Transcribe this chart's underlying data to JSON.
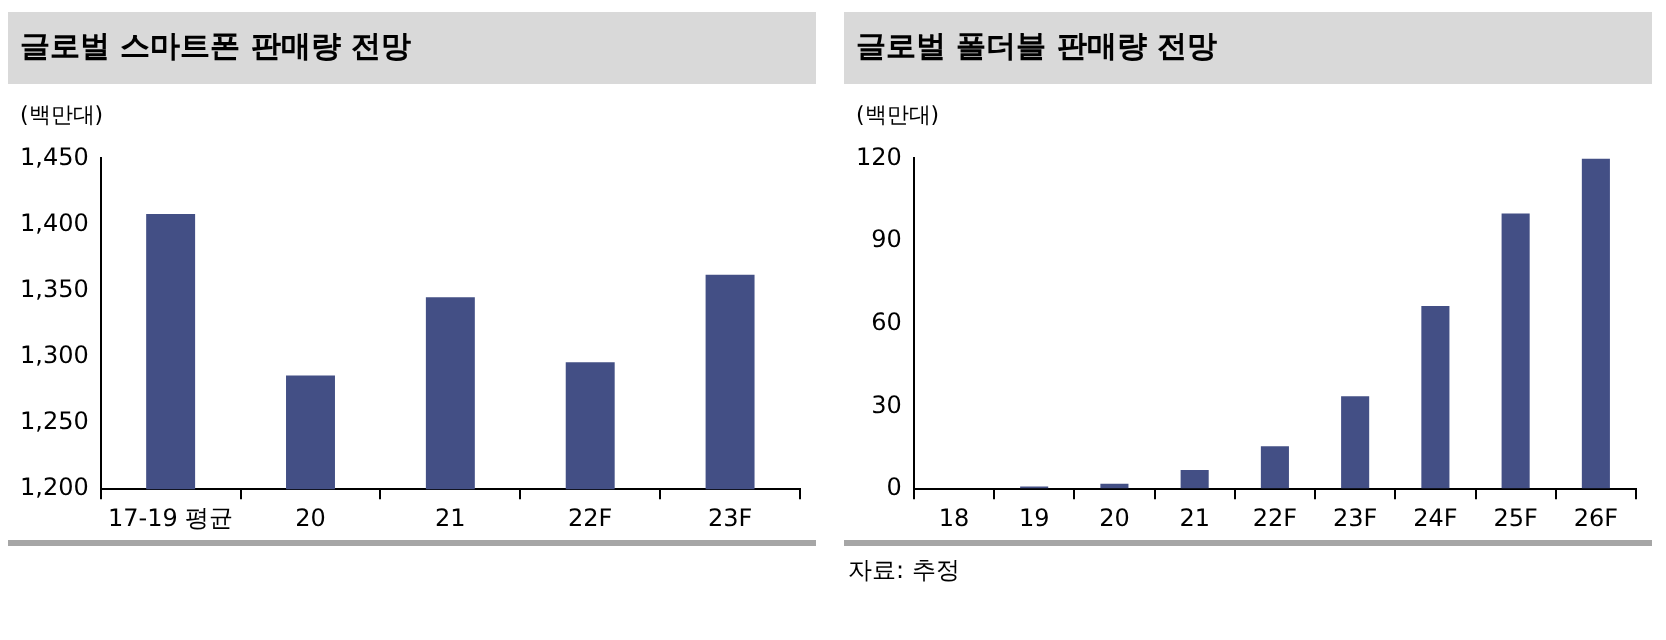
{
  "chart_data": [
    {
      "type": "bar",
      "title": "글로벌 스마트폰 판매량 전망",
      "ylabel": "(백만대)",
      "categories": [
        "17-19 평균",
        "20",
        "21",
        "22F",
        "23F"
      ],
      "values": [
        1408,
        1286,
        1345,
        1296,
        1362
      ],
      "color": "#434f85",
      "ylim": [
        1200,
        1450
      ],
      "yticks": [
        {
          "value": 1200,
          "label": "1,200"
        },
        {
          "value": 1250,
          "label": "1,250"
        },
        {
          "value": 1300,
          "label": "1,300"
        },
        {
          "value": 1350,
          "label": "1,350"
        },
        {
          "value": 1400,
          "label": "1,400"
        },
        {
          "value": 1450,
          "label": "1,450"
        }
      ],
      "grid": false
    },
    {
      "type": "bar",
      "title": "글로벌 폴더블 판매량 전망",
      "ylabel": "(백만대)",
      "categories": [
        "18",
        "19",
        "20",
        "21",
        "22F",
        "23F",
        "24F",
        "25F",
        "26F"
      ],
      "values": [
        0,
        1,
        2,
        7,
        15.6,
        33.7,
        66.5,
        100,
        120
      ],
      "color": "#434f85",
      "ylim": [
        0,
        120
      ],
      "yticks": [
        0,
        30,
        60,
        90,
        120
      ],
      "grid": false,
      "annotations": [
        "자료: 추정"
      ]
    }
  ]
}
